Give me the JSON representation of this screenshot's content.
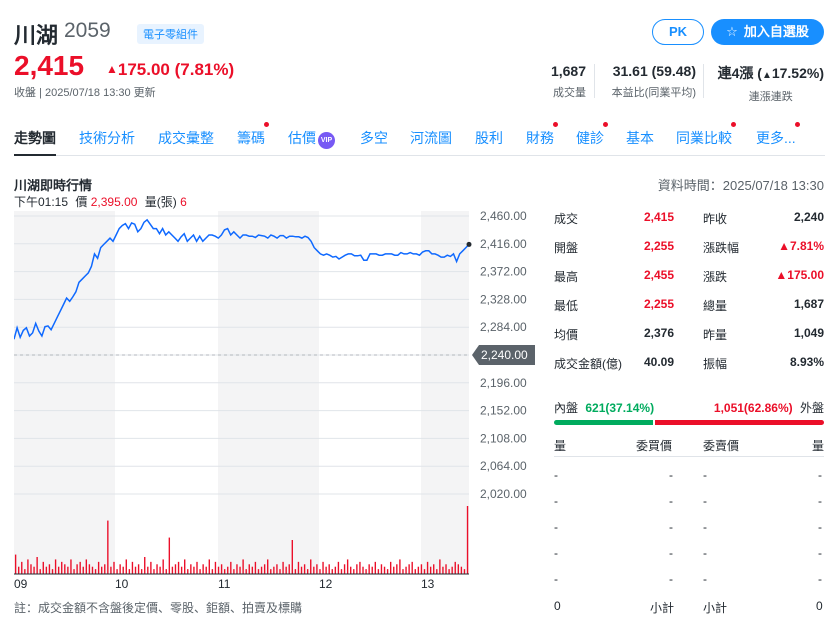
{
  "stock": {
    "name": "川湖",
    "code": "2059",
    "tag": "電子零組件",
    "price": "2,415",
    "change": "175.00 (7.81%)",
    "update": "收盤 | 2025/07/18 13:30 更新"
  },
  "actions": {
    "pk": "PK",
    "watch": "加入自選股"
  },
  "stats": [
    {
      "value": "1,687",
      "label": "成交量",
      "color": "#232a31"
    },
    {
      "value": "31.61 (59.48)",
      "label": "本益比(同業平均)",
      "color": "#232a31"
    },
    {
      "value_prefix": "連4漲 (",
      "value_arrow": "▲",
      "value_pct": "17.52%)",
      "label": "連漲連跌"
    }
  ],
  "tabs": [
    {
      "label": "走勢圖",
      "active": true,
      "dot": false
    },
    {
      "label": "技術分析",
      "dot": false
    },
    {
      "label": "成交彙整",
      "dot": false
    },
    {
      "label": "籌碼",
      "dot": true
    },
    {
      "label": "估價",
      "dot": false,
      "vip": "VIP"
    },
    {
      "label": "多空",
      "dot": false
    },
    {
      "label": "河流圖",
      "dot": false
    },
    {
      "label": "股利",
      "dot": false
    },
    {
      "label": "財務",
      "dot": true
    },
    {
      "label": "健診",
      "dot": true
    },
    {
      "label": "基本",
      "dot": false
    },
    {
      "label": "同業比較",
      "dot": true
    },
    {
      "label": "更多...",
      "dot": true
    }
  ],
  "section": {
    "title": "川湖即時行情",
    "data_time": "資料時間：2025/07/18 13:30",
    "hover_time": "下午01:15",
    "hover_price_label": "價",
    "hover_price": "2,395.00",
    "hover_vol_label": "量(張)",
    "hover_vol": "6"
  },
  "chart_data": {
    "type": "line",
    "x_labels": [
      "09",
      "10",
      "11",
      "12",
      "13"
    ],
    "y_ticks": [
      "2,460.00",
      "2,416.00",
      "2,372.00",
      "2,328.00",
      "2,284.00",
      "2,240.00",
      "2,196.00",
      "2,152.00",
      "2,108.00",
      "2,064.00",
      "2,020.00"
    ],
    "ylim": [
      2020,
      2460
    ],
    "reference": 2240,
    "reference_label": "2,240.00",
    "price_series": [
      2265,
      2283,
      2268,
      2279,
      2283,
      2270,
      2275,
      2290,
      2278,
      2270,
      2285,
      2286,
      2280,
      2290,
      2300,
      2310,
      2320,
      2330,
      2325,
      2332,
      2340,
      2355,
      2360,
      2365,
      2370,
      2380,
      2400,
      2393,
      2410,
      2415,
      2420,
      2425,
      2420,
      2430,
      2440,
      2445,
      2448,
      2440,
      2449,
      2447,
      2435,
      2440,
      2450,
      2454,
      2447,
      2440,
      2440,
      2432,
      2440,
      2430,
      2435,
      2430,
      2425,
      2420,
      2427,
      2432,
      2420,
      2425,
      2430,
      2420,
      2428,
      2420,
      2425,
      2430,
      2430,
      2428,
      2425,
      2430,
      2438,
      2440,
      2430,
      2435,
      2430,
      2425,
      2430,
      2430,
      2428,
      2428,
      2426,
      2430,
      2429,
      2428,
      2425,
      2430,
      2428,
      2425,
      2429,
      2429,
      2425,
      2428,
      2428,
      2427,
      2427,
      2425,
      2428,
      2426,
      2420,
      2410,
      2405,
      2400,
      2398,
      2400,
      2398,
      2395,
      2396,
      2392,
      2395,
      2398,
      2400,
      2400,
      2397,
      2397,
      2398,
      2390,
      2390,
      2400,
      2400,
      2400,
      2398,
      2398,
      2400,
      2400,
      2400,
      2398,
      2398,
      2402,
      2400,
      2400,
      2402,
      2400,
      2400,
      2398,
      2403,
      2405,
      2405,
      2400,
      2400,
      2398,
      2395,
      2395,
      2398,
      2396,
      2400,
      2388,
      2400,
      2405,
      2410,
      2415
    ],
    "volume_series": [
      8,
      3,
      5,
      2,
      6,
      4,
      3,
      7,
      2,
      5,
      3,
      4,
      2,
      6,
      3,
      5,
      4,
      3,
      6,
      2,
      4,
      5,
      3,
      6,
      4,
      3,
      2,
      5,
      3,
      4,
      22,
      3,
      5,
      2,
      4,
      3,
      6,
      2,
      5,
      3,
      4,
      2,
      7,
      3,
      5,
      2,
      4,
      3,
      6,
      2,
      15,
      3,
      4,
      5,
      3,
      6,
      2,
      4,
      3,
      5,
      2,
      4,
      3,
      6,
      2,
      5,
      3,
      4,
      2,
      3,
      5,
      2,
      4,
      3,
      6,
      2,
      4,
      3,
      5,
      2,
      3,
      4,
      6,
      2,
      3,
      4,
      2,
      5,
      3,
      4,
      14,
      2,
      5,
      3,
      4,
      2,
      6,
      3,
      4,
      2,
      5,
      3,
      4,
      2,
      3,
      5,
      2,
      4,
      6,
      3,
      2,
      4,
      5,
      3,
      2,
      4,
      3,
      5,
      2,
      4,
      3,
      2,
      5,
      3,
      4,
      6,
      2,
      3,
      4,
      5,
      2,
      3,
      4,
      2,
      5,
      3,
      4,
      2,
      6,
      3,
      4,
      2,
      3,
      5,
      4,
      3,
      2,
      28
    ],
    "colors": {
      "line": "#0f69ff",
      "volume": "#eb0f29",
      "grid": "#e0e4e9",
      "band": "#f4f4f5"
    }
  },
  "quote": {
    "left": [
      {
        "label": "成交",
        "value": "2,415",
        "color": "red"
      },
      {
        "label": "開盤",
        "value": "2,255",
        "color": "red"
      },
      {
        "label": "最高",
        "value": "2,455",
        "color": "red"
      },
      {
        "label": "最低",
        "value": "2,255",
        "color": "red"
      },
      {
        "label": "均價",
        "value": "2,376",
        "color": "dark"
      },
      {
        "label": "成交金額(億)",
        "value": "40.09",
        "color": "dark"
      }
    ],
    "right": [
      {
        "label": "昨收",
        "value": "2,240",
        "color": "dark"
      },
      {
        "label": "漲跌幅",
        "value": "▲7.81%",
        "color": "red"
      },
      {
        "label": "漲跌",
        "value": "▲175.00",
        "color": "red"
      },
      {
        "label": "總量",
        "value": "1,687",
        "color": "dark"
      },
      {
        "label": "昨量",
        "value": "1,049",
        "color": "dark"
      },
      {
        "label": "振幅",
        "value": "8.93%",
        "color": "dark"
      }
    ]
  },
  "inout": {
    "inner_label": "內盤",
    "inner_value": "621(37.14%)",
    "inner_fraction": 0.3714,
    "outer_value": "1,051(62.86%)",
    "outer_label": "外盤"
  },
  "orderbook": {
    "headers": [
      "量",
      "委買價",
      "委賣價",
      "量"
    ],
    "placeholder": "-",
    "rows": 5,
    "footer_left_value": "0",
    "footer_left_label": "小計",
    "footer_right_label": "小計",
    "footer_right_value": "0"
  },
  "footnote": "註：成交金額不含盤後定價、零股、鉅額、拍賣及標購"
}
